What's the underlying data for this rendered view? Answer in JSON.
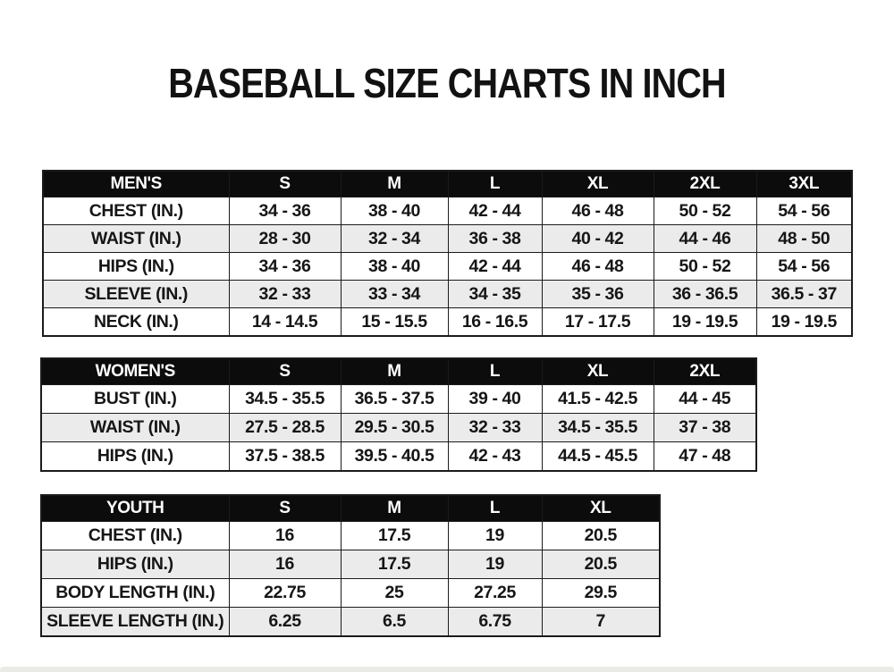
{
  "page": {
    "title": "BASEBALL SIZE CHARTS IN INCH"
  },
  "colors": {
    "header_bg": "#0c0c0c",
    "header_text": "#ffffff",
    "row_alt_bg": "#ebebeb",
    "border": "#1b1b1b",
    "text": "#161616",
    "page_bg": "#ffffff"
  },
  "tables": [
    {
      "name": "mens",
      "header": [
        "MEN'S",
        "S",
        "M",
        "L",
        "XL",
        "2XL",
        "3XL"
      ],
      "rows": [
        [
          "CHEST (IN.)",
          "34 - 36",
          "38 - 40",
          "42 - 44",
          "46 - 48",
          "50 - 52",
          "54 - 56"
        ],
        [
          "WAIST (IN.)",
          "28 - 30",
          "32 - 34",
          "36 - 38",
          "40 - 42",
          "44 - 46",
          "48 - 50"
        ],
        [
          "HIPS (IN.)",
          "34 - 36",
          "38 - 40",
          "42 - 44",
          "46 - 48",
          "50 - 52",
          "54 - 56"
        ],
        [
          "SLEEVE (IN.)",
          "32 - 33",
          "33 - 34",
          "34 - 35",
          "35 - 36",
          "36 - 36.5",
          "36.5 - 37"
        ],
        [
          "NECK (IN.)",
          "14 - 14.5",
          "15 - 15.5",
          "16 - 16.5",
          "17 - 17.5",
          "19 - 19.5",
          "19 - 19.5"
        ]
      ]
    },
    {
      "name": "womens",
      "header": [
        "WOMEN'S",
        "S",
        "M",
        "L",
        "XL",
        "2XL"
      ],
      "rows": [
        [
          "BUST (IN.)",
          "34.5 - 35.5",
          "36.5 - 37.5",
          "39 - 40",
          "41.5 - 42.5",
          "44 - 45"
        ],
        [
          "WAIST (IN.)",
          "27.5 - 28.5",
          "29.5 - 30.5",
          "32 - 33",
          "34.5 - 35.5",
          "37 - 38"
        ],
        [
          "HIPS (IN.)",
          "37.5 - 38.5",
          "39.5 - 40.5",
          "42 - 43",
          "44.5 - 45.5",
          "47 - 48"
        ]
      ]
    },
    {
      "name": "youth",
      "header": [
        "YOUTH",
        "S",
        "M",
        "L",
        "XL"
      ],
      "rows": [
        [
          "CHEST (IN.)",
          "16",
          "17.5",
          "19",
          "20.5"
        ],
        [
          "HIPS (IN.)",
          "16",
          "17.5",
          "19",
          "20.5"
        ],
        [
          "BODY LENGTH (IN.)",
          "22.75",
          "25",
          "27.25",
          "29.5"
        ],
        [
          "SLEEVE LENGTH (IN.)",
          "6.25",
          "6.5",
          "6.75",
          "7"
        ]
      ]
    }
  ]
}
